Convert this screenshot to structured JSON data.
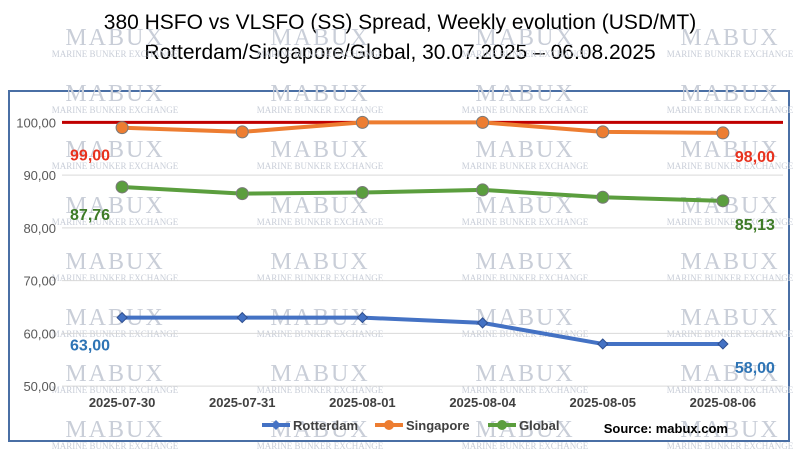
{
  "chart_data": {
    "type": "line",
    "title": "380 HSFO vs VLSFO (SS) Spread, Weekly evolution (USD/MT)",
    "subtitle": "Rotterdam/Singapore/Global, 30.07.2025 – 06.08.2025",
    "categories": [
      "2025-07-30",
      "2025-07-31",
      "2025-08-01",
      "2025-08-04",
      "2025-08-05",
      "2025-08-06"
    ],
    "series": [
      {
        "name": "Rotterdam",
        "color": "#4472c4",
        "marker": "diamond",
        "values": [
          63,
          63,
          63,
          62,
          58,
          58
        ],
        "start_label": "63,00",
        "end_label": "58,00"
      },
      {
        "name": "Singapore",
        "color": "#ed7d31",
        "marker": "circle",
        "values": [
          99,
          98.2,
          100,
          100,
          98.2,
          98
        ],
        "start_label": "99,00",
        "end_label": "98,00"
      },
      {
        "name": "Global",
        "color": "#5b9e3e",
        "marker": "circle",
        "values": [
          87.76,
          86.5,
          86.7,
          87.2,
          85.8,
          85.13
        ],
        "start_label": "87,76",
        "end_label": "85,13"
      }
    ],
    "reference_line": {
      "value": 100,
      "color": "#c00000"
    },
    "yticks": [
      "50,00",
      "60,00",
      "70,00",
      "80,00",
      "90,00",
      "100,00"
    ],
    "ytick_values": [
      50,
      60,
      70,
      80,
      90,
      100
    ],
    "ylim": [
      47,
      105
    ],
    "grid": "horizontal",
    "legend_position": "bottom",
    "source": "Source: mabux.com",
    "watermark": {
      "brand": "MABUX",
      "tagline": "MARINE BUNKER EXCHANGE"
    },
    "label_colors": {
      "Rotterdam": "#2e74b5",
      "Singapore": "#e8321e",
      "Global": "#3e7b27"
    }
  }
}
